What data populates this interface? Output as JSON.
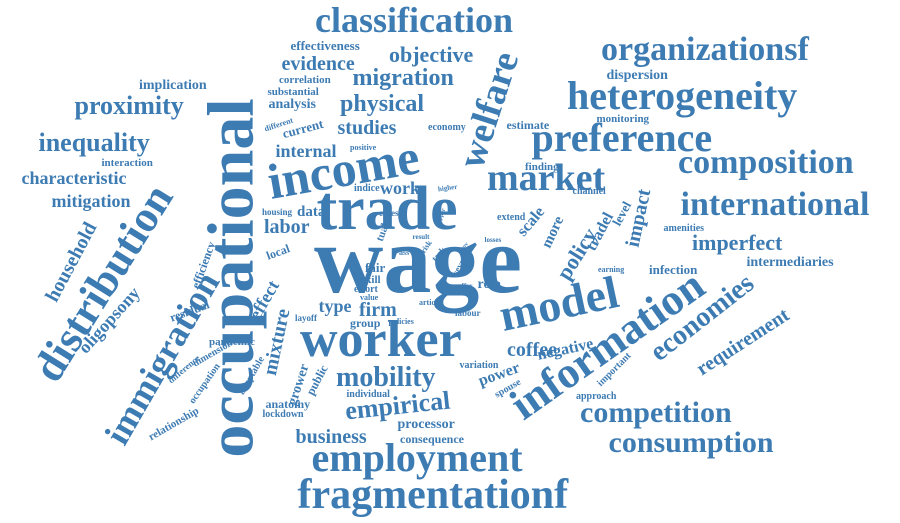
{
  "color": "#3d7bb3",
  "words": [
    {
      "text": "wage"
    },
    {
      "text": "occupational"
    },
    {
      "text": "trade"
    },
    {
      "text": "income"
    },
    {
      "text": "worker"
    },
    {
      "text": "information"
    },
    {
      "text": "distribution"
    },
    {
      "text": "model"
    },
    {
      "text": "employment"
    },
    {
      "text": "fragmentationf"
    },
    {
      "text": "preference"
    },
    {
      "text": "heterogeneity"
    },
    {
      "text": "organizationsf"
    },
    {
      "text": "classification"
    },
    {
      "text": "international"
    },
    {
      "text": "composition"
    },
    {
      "text": "market"
    },
    {
      "text": "welfare"
    },
    {
      "text": "immigration"
    },
    {
      "text": "economies"
    },
    {
      "text": "competition"
    },
    {
      "text": "consumption"
    },
    {
      "text": "empirical"
    },
    {
      "text": "mobility"
    },
    {
      "text": "proximity"
    },
    {
      "text": "inequality"
    },
    {
      "text": "physical"
    },
    {
      "text": "migration"
    },
    {
      "text": "objective"
    },
    {
      "text": "evidence"
    },
    {
      "text": "characteristic"
    },
    {
      "text": "mitigation"
    },
    {
      "text": "household"
    },
    {
      "text": "oligopsony"
    },
    {
      "text": "imperfect"
    },
    {
      "text": "impact"
    },
    {
      "text": "policy"
    },
    {
      "text": "requirement"
    },
    {
      "text": "business"
    },
    {
      "text": "studies"
    },
    {
      "text": "internal"
    },
    {
      "text": "labor"
    },
    {
      "text": "work"
    },
    {
      "text": "coffee"
    },
    {
      "text": "mixture"
    },
    {
      "text": "effect"
    },
    {
      "text": "firm"
    },
    {
      "text": "type"
    },
    {
      "text": "effectiveness"
    },
    {
      "text": "implication"
    },
    {
      "text": "analysis"
    },
    {
      "text": "correlation"
    },
    {
      "text": "substantial"
    },
    {
      "text": "current"
    },
    {
      "text": "different"
    },
    {
      "text": "interaction"
    },
    {
      "text": "dispersion"
    },
    {
      "text": "monitoring"
    },
    {
      "text": "estimate"
    },
    {
      "text": "economy"
    },
    {
      "text": "positive"
    },
    {
      "text": "finding"
    },
    {
      "text": "intermediaries"
    },
    {
      "text": "infection"
    },
    {
      "text": "amenities"
    },
    {
      "text": "tradel"
    },
    {
      "text": "scale"
    },
    {
      "text": "more"
    },
    {
      "text": "level"
    },
    {
      "text": "channel"
    },
    {
      "text": "extend"
    },
    {
      "text": "losses"
    },
    {
      "text": "several"
    },
    {
      "text": "task"
    },
    {
      "text": "risk"
    },
    {
      "text": "result"
    },
    {
      "text": "upper"
    },
    {
      "text": "cities"
    },
    {
      "text": "indice"
    },
    {
      "text": "higher"
    },
    {
      "text": "prov"
    },
    {
      "text": "data"
    },
    {
      "text": "housing"
    },
    {
      "text": "local"
    },
    {
      "text": "efficiency"
    },
    {
      "text": "residual"
    },
    {
      "text": "fair"
    },
    {
      "text": "skill"
    },
    {
      "text": "effort"
    },
    {
      "text": "value"
    },
    {
      "text": "tual"
    },
    {
      "text": "ass"
    },
    {
      "text": "role"
    },
    {
      "text": "offer"
    },
    {
      "text": "article"
    },
    {
      "text": "labour"
    },
    {
      "text": "layoff"
    },
    {
      "text": "group"
    },
    {
      "text": "policies"
    },
    {
      "text": "earning"
    },
    {
      "text": "pandemic"
    },
    {
      "text": "dimension"
    },
    {
      "text": "difference"
    },
    {
      "text": "occupation"
    },
    {
      "text": "adaptable"
    },
    {
      "text": "grower"
    },
    {
      "text": "public"
    },
    {
      "text": "variation"
    },
    {
      "text": "power"
    },
    {
      "text": "negative"
    },
    {
      "text": "spouse"
    },
    {
      "text": "important"
    },
    {
      "text": "approach"
    },
    {
      "text": "individual"
    },
    {
      "text": "anatomy"
    },
    {
      "text": "lockdown"
    },
    {
      "text": "relationship"
    },
    {
      "text": "processor"
    },
    {
      "text": "consequence"
    }
  ]
}
